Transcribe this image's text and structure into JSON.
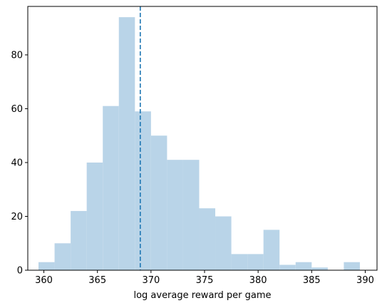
{
  "chart_data": {
    "type": "bar",
    "subtype": "histogram",
    "xlabel": "log average reward per game",
    "ylabel": "",
    "title": "",
    "xlim": [
      358.5,
      391.1
    ],
    "ylim": [
      0,
      98
    ],
    "xticks": [
      360,
      365,
      370,
      375,
      380,
      385,
      390
    ],
    "yticks": [
      0,
      20,
      40,
      60,
      80
    ],
    "bin_edges": [
      359.5,
      361.0,
      362.5,
      364.0,
      365.5,
      367.0,
      368.5,
      370.0,
      371.5,
      373.0,
      374.5,
      376.0,
      377.5,
      379.0,
      380.5,
      382.0,
      383.5,
      385.0,
      386.5,
      388.0,
      389.5
    ],
    "counts": [
      3,
      10,
      22,
      40,
      61,
      94,
      59,
      50,
      41,
      41,
      23,
      20,
      6,
      6,
      15,
      2,
      3,
      1,
      0,
      3
    ],
    "bar_color": "#b9d4e8",
    "reference_line": {
      "x": 369.0,
      "style": "dashed",
      "color": "#1f77b4"
    },
    "grid": false
  }
}
